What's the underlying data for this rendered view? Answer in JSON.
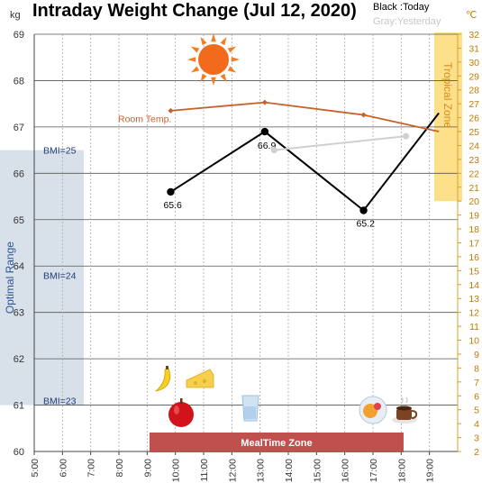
{
  "chart_data": {
    "type": "line",
    "title": "Intraday Weight Change (Jul 12, 2020)",
    "y_unit": "kg",
    "y2_unit": "℃",
    "ylim": [
      60,
      69
    ],
    "y2lim": [
      2,
      32
    ],
    "y_ticks": [
      "60",
      "61",
      "62",
      "63",
      "64",
      "65",
      "66",
      "67",
      "68",
      "69"
    ],
    "y2_ticks": [
      "2",
      "3",
      "4",
      "5",
      "6",
      "7",
      "8",
      "9",
      "10",
      "11",
      "12",
      "13",
      "14",
      "15",
      "16",
      "17",
      "18",
      "19",
      "20",
      "21",
      "22",
      "23",
      "24",
      "25",
      "26",
      "27",
      "28",
      "29",
      "30",
      "31",
      "32"
    ],
    "x_ticks": [
      "5:00",
      "6:00",
      "7:00",
      "8:00",
      "9:00",
      "10:00",
      "11:00",
      "12:00",
      "13:00",
      "14:00",
      "15:00",
      "16:00",
      "17:00",
      "18:00",
      "19:00"
    ],
    "legend": {
      "today": "Black :Today",
      "yesterday": "Gray:Yesterday"
    },
    "series": [
      {
        "name": "Black :Today",
        "color": "#000000",
        "x": [
          "9:50",
          "13:10",
          "16:40",
          "19:20"
        ],
        "values": [
          65.6,
          66.9,
          65.2,
          67.3
        ],
        "labels": [
          "65.6",
          "66.9",
          "65.2",
          ""
        ]
      },
      {
        "name": "Gray:Yesterday",
        "color": "#d0d0d0",
        "x": [
          "13:30",
          "18:10"
        ],
        "values": [
          66.5,
          66.8
        ]
      },
      {
        "name": "Room Temp.",
        "axis": "right",
        "color": "#c8622a",
        "x": [
          "9:50",
          "13:10",
          "16:40",
          "19:20"
        ],
        "values": [
          26.5,
          27.1,
          26.2,
          25.0
        ]
      }
    ],
    "annotations": {
      "optimal_range": {
        "label": "Optimal Range",
        "y_range": [
          61.0,
          66.5
        ]
      },
      "bmi_lines": [
        {
          "label": "BMI=25",
          "y": 66.5
        },
        {
          "label": "BMI=24",
          "y": 63.8
        },
        {
          "label": "BMI=23",
          "y": 61.1
        }
      ],
      "tropical_zone": {
        "label": "Tropical Zone",
        "x_range": [
          "19:10",
          "20:00"
        ],
        "y2_range": [
          20,
          32
        ]
      },
      "room_temp_label": "Room Temp.",
      "meal_zone": {
        "label": "MealTime Zone",
        "x_range": [
          "9:05",
          "18:05"
        ]
      }
    },
    "icons": [
      "sun-icon",
      "banana-icon",
      "cheese-icon",
      "apple-icon",
      "water-glass-icon",
      "meal-plate-icon",
      "coffee-cup-icon"
    ],
    "grid": true
  }
}
